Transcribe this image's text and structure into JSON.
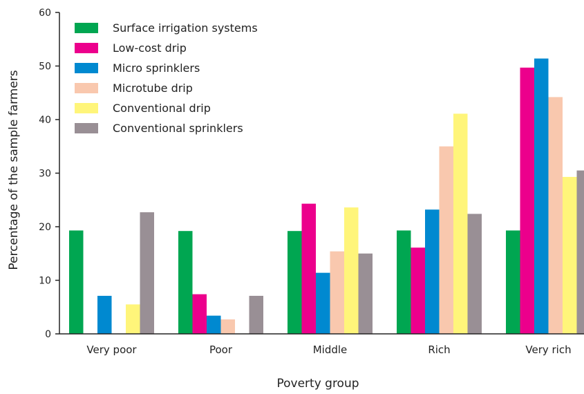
{
  "chart_data": {
    "type": "bar",
    "title": "",
    "xlabel": "Poverty group",
    "ylabel": "Percentage of the sample farmers",
    "ylim": [
      0,
      60
    ],
    "yticks": [
      0,
      10,
      20,
      30,
      40,
      50,
      60
    ],
    "grid": false,
    "legend_position": "top-left",
    "categories": [
      "Very poor",
      "Poor",
      "Middle",
      "Rich",
      "Very rich"
    ],
    "series": [
      {
        "name": "Surface irrigation systems",
        "color": "#00A651",
        "values": [
          19.3,
          19.2,
          19.2,
          19.3,
          19.3
        ]
      },
      {
        "name": "Low-cost drip",
        "color": "#EC008C",
        "values": [
          0,
          7.4,
          24.3,
          16.1,
          49.7
        ]
      },
      {
        "name": "Micro sprinklers",
        "color": "#0089D0",
        "values": [
          7.1,
          3.4,
          11.4,
          23.2,
          51.4
        ]
      },
      {
        "name": "Microtube drip",
        "color": "#F9C8AE",
        "values": [
          0,
          2.7,
          15.4,
          35.0,
          44.2
        ]
      },
      {
        "name": "Conventional drip",
        "color": "#FFF57A",
        "values": [
          5.5,
          0,
          23.6,
          41.1,
          29.3
        ]
      },
      {
        "name": "Conventional sprinklers",
        "color": "#998F95",
        "values": [
          22.7,
          7.1,
          15.0,
          22.4,
          30.5
        ]
      }
    ]
  }
}
